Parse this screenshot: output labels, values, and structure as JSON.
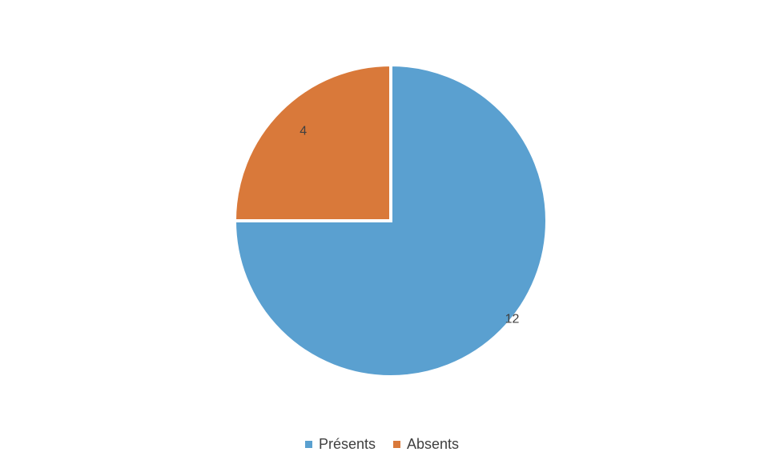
{
  "chart_data": {
    "type": "pie",
    "title": "",
    "categories": [
      "Présents",
      "Absents"
    ],
    "values": [
      12,
      4
    ],
    "colors": [
      "#5aa0d0",
      "#d9793a"
    ],
    "data_labels": [
      "12",
      "4"
    ],
    "legend_position": "bottom",
    "start_angle": "top",
    "direction": "clockwise"
  },
  "legend": {
    "items": [
      {
        "label": "Présents",
        "color": "#5aa0d0"
      },
      {
        "label": "Absents",
        "color": "#d9793a"
      }
    ]
  }
}
